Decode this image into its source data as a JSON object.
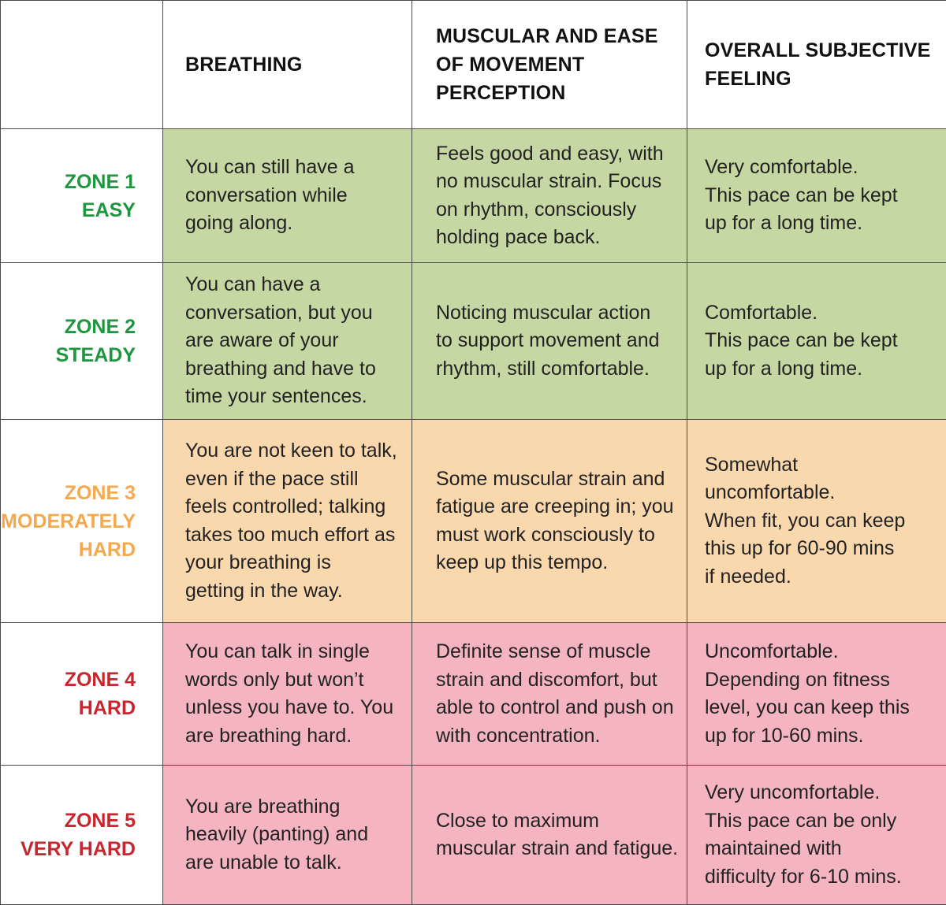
{
  "colors": {
    "green_fill": "#c5d8a3",
    "orange_fill": "#fad8ae",
    "pink_fill": "#f4b4c0",
    "green_text": "#1e9640",
    "orange_text": "#f5a84d",
    "red_text": "#c6262e",
    "border": "#4a4a4a"
  },
  "headers": {
    "corner": "",
    "breathing": "BREATHING",
    "muscular": "MUSCULAR AND EASE\nOF MOVEMENT\nPERCEPTION",
    "overall": "OVERALL SUBJECTIVE\nFEELING"
  },
  "rows": [
    {
      "zone": "ZONE 1\nEASY",
      "zone_color": "#1e9640",
      "fill": "#c5d8a3",
      "breathing": "You can still have a\nconversation while\ngoing along.",
      "muscular": "Feels good and easy, with\nno muscular strain. Focus\non rhythm, consciously\nholding pace back.",
      "feeling": "Very comfortable.\nThis pace can be kept\nup for a long time."
    },
    {
      "zone": "ZONE 2\nSTEADY",
      "zone_color": "#1e9640",
      "fill": "#c5d8a3",
      "breathing": "You can have a\nconversation, but you\nare aware of your\nbreathing and have to\ntime your sentences.",
      "muscular": "Noticing muscular action\nto support movement and\nrhythm, still comfortable.",
      "feeling": "Comfortable.\nThis pace can be kept\nup for a long time."
    },
    {
      "zone": "ZONE 3\nMODERATELY\nHARD",
      "zone_color": "#f5a84d",
      "fill": "#fad8ae",
      "breathing": "You are not keen to talk,\neven if the pace still\nfeels controlled; talking\ntakes too much effort as\nyour breathing is\ngetting in the way.",
      "muscular": "Some muscular strain and\nfatigue are creeping in; you\nmust work consciously to\nkeep up this tempo.",
      "feeling": "Somewhat\nuncomfortable.\nWhen fit, you can keep\nthis up for 60-90 mins\nif needed."
    },
    {
      "zone": "ZONE 4\nHARD",
      "zone_color": "#c6262e",
      "fill": "#f4b4c0",
      "breathing": "You can talk in single\nwords only but won’t\nunless you have to. You\nare breathing hard.",
      "muscular": "Definite sense of muscle\nstrain and discomfort, but\nable to control and push on\nwith concentration.",
      "feeling": "Uncomfortable.\nDepending on fitness\nlevel, you can keep this\nup for 10-60 mins."
    },
    {
      "zone": "ZONE 5\nVERY HARD",
      "zone_color": "#c6262e",
      "fill": "#f4b4c0",
      "breathing": "You are breathing\nheavily (panting) and\nare unable to talk.",
      "muscular": "Close to maximum\nmuscular strain and fatigue.",
      "feeling": "Very uncomfortable.\nThis pace can be only\nmaintained with\ndifficulty for 6-10 mins."
    }
  ]
}
